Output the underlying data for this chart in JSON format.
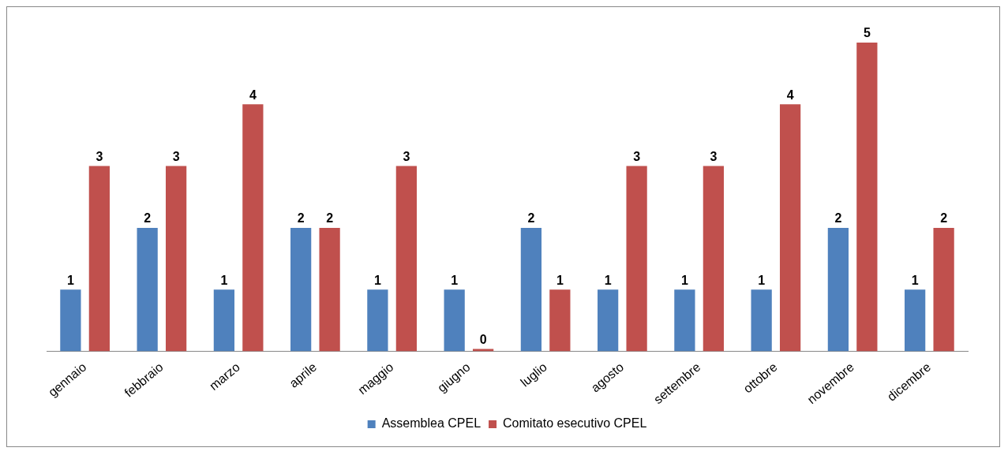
{
  "chart_data": {
    "type": "bar",
    "categories": [
      "gennaio",
      "febbraio",
      "marzo",
      "aprile",
      "maggio",
      "giugno",
      "luglio",
      "agosto",
      "settembre",
      "ottobre",
      "novembre",
      "dicembre"
    ],
    "series": [
      {
        "name": "Assemblea CPEL",
        "color": "#4f81bd",
        "values": [
          1,
          2,
          1,
          2,
          1,
          1,
          2,
          1,
          1,
          1,
          2,
          1
        ]
      },
      {
        "name": "Comitato esecutivo CPEL",
        "color": "#c0504d",
        "values": [
          3,
          3,
          4,
          2,
          3,
          0,
          1,
          3,
          3,
          4,
          5,
          2
        ]
      }
    ],
    "data_labels": true,
    "grid": false,
    "legend": "bottom"
  }
}
